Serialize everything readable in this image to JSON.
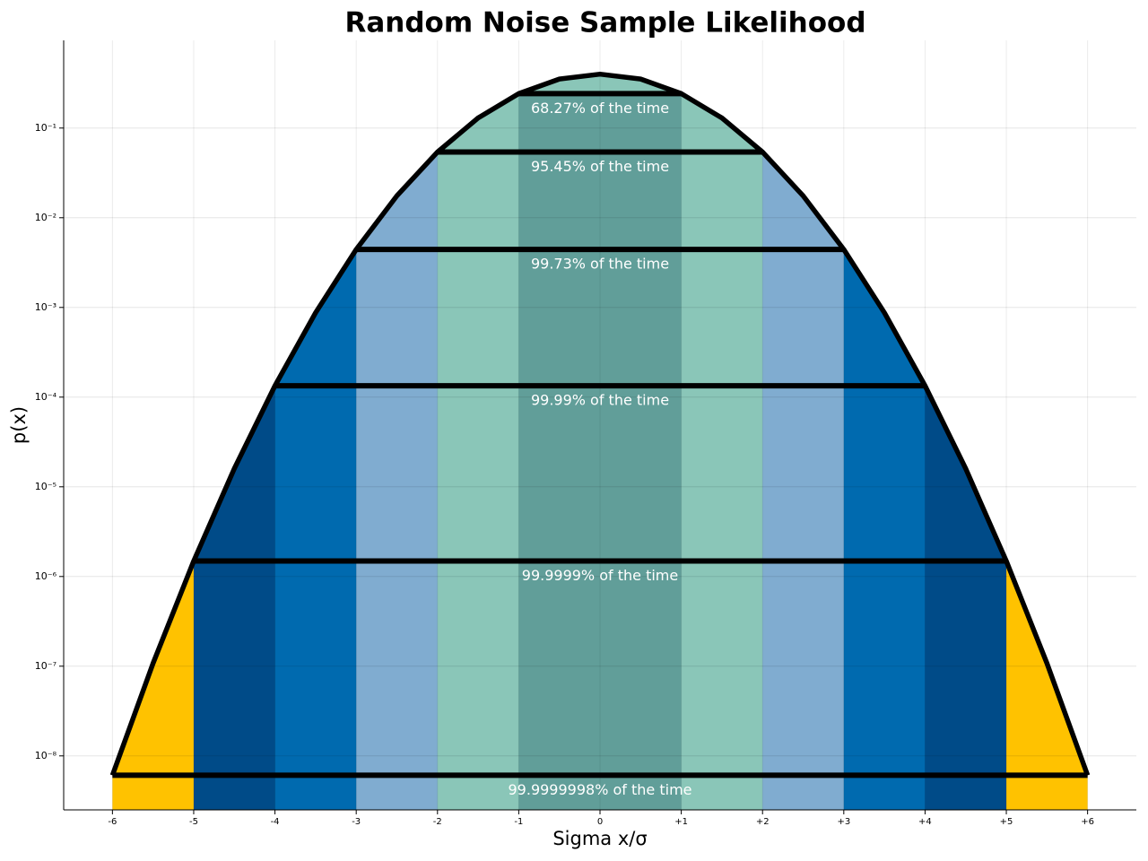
{
  "chart_data": {
    "type": "gaussian-bands",
    "title": "Random Noise Sample Likelihood",
    "x_label": "Sigma x/σ",
    "y_label": "p(x)",
    "log_y": true,
    "grid": true,
    "xlim": [
      -6.6,
      6.6
    ],
    "ylim": [
      2.5e-09,
      0.95
    ],
    "xticks": [
      -6,
      -5,
      -4,
      -3,
      -2,
      -1,
      0,
      {
        "value": 1,
        "label": "+1"
      },
      {
        "value": 2,
        "label": "+2"
      },
      {
        "value": 3,
        "label": "+3"
      },
      {
        "value": 4,
        "label": "+4"
      },
      {
        "value": 5,
        "label": "+5"
      },
      {
        "value": 6,
        "label": "+6"
      }
    ],
    "yticks": [
      {
        "value": 1e-08,
        "label": "10⁻⁸"
      },
      {
        "value": 1e-07,
        "label": "10⁻⁷"
      },
      {
        "value": 1e-06,
        "label": "10⁻⁶"
      },
      {
        "value": 1e-05,
        "label": "10⁻⁵"
      },
      {
        "value": 0.0001,
        "label": "10⁻⁴"
      },
      {
        "value": 0.001,
        "label": "10⁻³"
      },
      {
        "value": 0.01,
        "label": "10⁻²"
      },
      {
        "value": 0.1,
        "label": "10⁻¹"
      }
    ],
    "series": [
      {
        "name": "p(x)",
        "color": "#000000",
        "x": [
          -6,
          -5.5,
          -5,
          -4.5,
          -4,
          -3.5,
          -3,
          -2.5,
          -2,
          -1.5,
          -1,
          -0.5,
          0,
          0.5,
          1,
          1.5,
          2,
          2.5,
          3,
          3.5,
          4,
          4.5,
          5,
          5.5,
          6
        ],
        "values": [
          6.076e-09,
          1.077e-07,
          1.487e-06,
          1.598e-05,
          0.0001338,
          0.0008727,
          0.004432,
          0.017528,
          0.053991,
          0.129518,
          0.241971,
          0.352065,
          0.398942,
          0.352065,
          0.241971,
          0.129518,
          0.053991,
          0.017528,
          0.004432,
          0.0008727,
          0.0001338,
          1.598e-05,
          1.487e-06,
          1.077e-07,
          6.076e-09
        ]
      }
    ],
    "levels": [
      {
        "sigma": 1,
        "p": 0.241971,
        "label": "68.27% of the time",
        "color": "#619e99"
      },
      {
        "sigma": 2,
        "p": 0.053991,
        "label": "95.45% of the time",
        "color": "#8ac6b8"
      },
      {
        "sigma": 3,
        "p": 0.004432,
        "label": "99.73% of the time",
        "color": "#80acd0"
      },
      {
        "sigma": 4,
        "p": 0.0001338,
        "label": "99.99% of the time",
        "color": "#006aaf"
      },
      {
        "sigma": 5,
        "p": 1.487e-06,
        "label": "99.9999% of the time",
        "color": "#004b88"
      },
      {
        "sigma": 6,
        "p": 6.076e-09,
        "label": "99.9999998% of the time",
        "color": "#ffc200"
      }
    ]
  }
}
